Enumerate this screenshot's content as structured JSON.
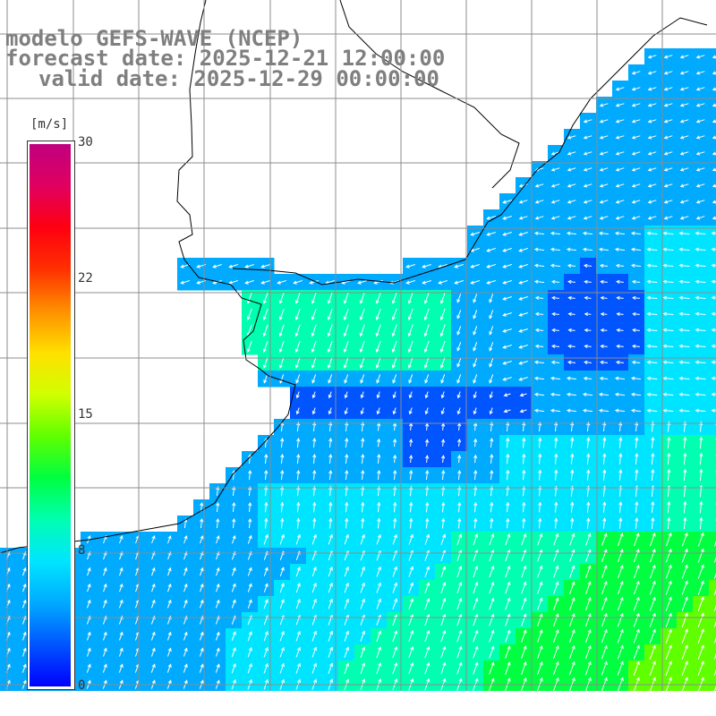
{
  "title": {
    "line1": "modelo GEFS-WAVE (NCEP)",
    "line2": "forecast date: 2025-12-21 12:00:00",
    "line3": "valid date: 2025-12-29 00:00:00"
  },
  "colorbar": {
    "units": "[m/s]",
    "ticks": [
      "30",
      "22",
      "15",
      "8",
      "0"
    ],
    "tick_values": [
      30,
      22,
      15,
      8,
      0
    ],
    "range": [
      0,
      30
    ],
    "colors": [
      "#0000ff",
      "#0055ff",
      "#00aaff",
      "#00e5ff",
      "#00ffb0",
      "#00ff40",
      "#60ff00",
      "#d0ff00",
      "#ffe000",
      "#ff9000",
      "#ff3000",
      "#ff0010",
      "#e00060",
      "#c0007f"
    ]
  },
  "map": {
    "field": "wind speed and direction",
    "land_color": "#ffffff",
    "grid_color": "#8c8c8c",
    "coast_color": "#000000"
  }
}
